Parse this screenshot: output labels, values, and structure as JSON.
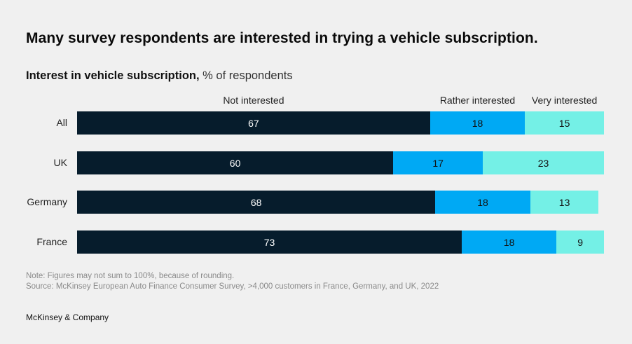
{
  "title": "Many survey respondents are interested in trying a vehicle subscription.",
  "subtitle": {
    "bold": "Interest in vehicle subscription,",
    "unit": "% of respondents"
  },
  "colors": {
    "not_interested": "#061c2c",
    "rather_interested": "#00a9f4",
    "very_interested": "#74f0e6",
    "label_light": "#ffffff",
    "label_dark": "#111111"
  },
  "chart_data": {
    "type": "bar",
    "orientation": "horizontal",
    "stacked": true,
    "title": "Interest in vehicle subscription, % of respondents",
    "categories": [
      "All",
      "UK",
      "Germany",
      "France"
    ],
    "series": [
      {
        "name": "Not interested",
        "values": [
          67,
          60,
          68,
          73
        ]
      },
      {
        "name": "Rather interested",
        "values": [
          18,
          17,
          18,
          18
        ]
      },
      {
        "name": "Very interested",
        "values": [
          15,
          23,
          13,
          9
        ]
      }
    ],
    "xlim": [
      0,
      100
    ],
    "grid": false,
    "legend": "top",
    "data_labels": true
  },
  "notes": {
    "note": "Note: Figures may not sum to 100%, because of rounding.",
    "source": "Source: McKinsey European Auto Finance Consumer Survey, >4,000 customers in France, Germany, and UK, 2022"
  },
  "brand": "McKinsey & Company"
}
